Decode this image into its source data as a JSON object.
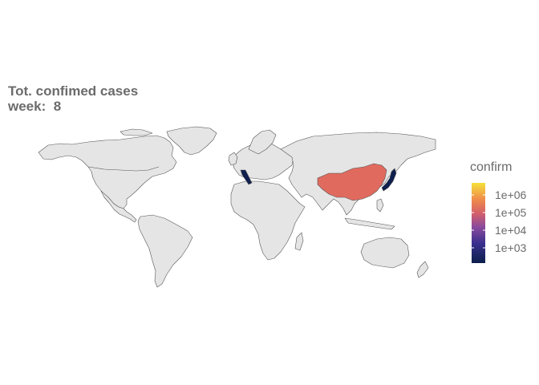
{
  "title": {
    "line1": "Tot. confimed cases",
    "line2": "week:  8"
  },
  "legend": {
    "title": "confirm",
    "scale": "log10",
    "colors": [
      "#0b1f4b",
      "#3b2f8f",
      "#8b4a9c",
      "#d45f6b",
      "#f08e4a",
      "#f5e03a"
    ],
    "ticks": [
      {
        "label": "1e+06",
        "value": 1000000
      },
      {
        "label": "1e+05",
        "value": 100000
      },
      {
        "label": "1e+04",
        "value": 10000
      },
      {
        "label": "1e+03",
        "value": 1000
      }
    ]
  },
  "map": {
    "default_fill": "#e5e5e5",
    "border_color": "#555555",
    "highlighted": [
      {
        "region": "China",
        "fill": "#e16a5f"
      },
      {
        "region": "Japan",
        "fill": "#0f1f4e"
      },
      {
        "region": "Italy",
        "fill": "#0f1f4e"
      }
    ]
  }
}
